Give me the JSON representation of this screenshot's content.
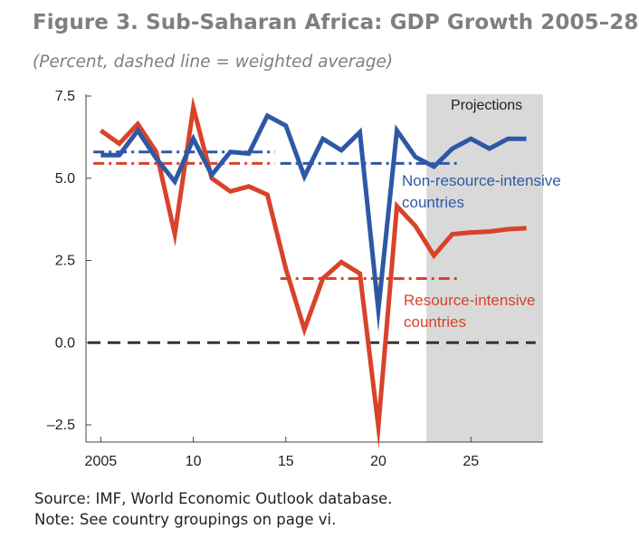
{
  "title": "Figure 3. Sub-Saharan Africa: GDP Growth 2005–28",
  "subtitle": "(Percent, dashed line = weighted average)",
  "source": "Source: IMF, World Economic Outlook database.",
  "note": "Note: See country groupings on page vi.",
  "chart_data": {
    "type": "line",
    "title": "Figure 3. Sub-Saharan Africa: GDP Growth 2005–28",
    "subtitle": "(Percent, dashed line = weighted average)",
    "xlabel": "",
    "ylabel": "",
    "xlim": [
      2004.2,
      2028.9
    ],
    "ylim": [
      -2.8,
      7.5
    ],
    "x_ticks": [
      {
        "value": 2005,
        "label": "2005"
      },
      {
        "value": 2010,
        "label": "10"
      },
      {
        "value": 2015,
        "label": "15"
      },
      {
        "value": 2020,
        "label": "20"
      },
      {
        "value": 2025,
        "label": "25"
      }
    ],
    "y_ticks": [
      {
        "value": 7.5,
        "label": "7.5"
      },
      {
        "value": 5.0,
        "label": "5.0"
      },
      {
        "value": 2.5,
        "label": "2.5"
      },
      {
        "value": 0.0,
        "label": "0.0"
      },
      {
        "value": -2.5,
        "label": "–2.5"
      }
    ],
    "grid": false,
    "projection_region": {
      "start": 2022.6,
      "end": 2028.9,
      "label": "Projections",
      "color": "#d9d9d9"
    },
    "x": [
      2005,
      2006,
      2007,
      2008,
      2009,
      2010,
      2011,
      2012,
      2013,
      2014,
      2015,
      2016,
      2017,
      2018,
      2019,
      2020,
      2021,
      2022,
      2023,
      2024,
      2025,
      2026,
      2027,
      2028
    ],
    "series": [
      {
        "name": "Non-resource-intensive\ncountries",
        "label_lines": [
          "Non-resource-intensive",
          "countries"
        ],
        "color": "#2e58a6",
        "values": [
          5.7,
          5.7,
          6.45,
          5.6,
          4.9,
          6.2,
          5.1,
          5.8,
          5.75,
          6.9,
          6.6,
          5.05,
          6.2,
          5.85,
          6.4,
          1.0,
          6.45,
          5.65,
          5.35,
          5.9,
          6.2,
          5.9,
          6.2,
          6.2
        ],
        "averages": [
          {
            "start": 2005,
            "end": 2014,
            "value": 5.8
          },
          {
            "start": 2015,
            "end": 2024,
            "value": 5.45
          }
        ]
      },
      {
        "name": "Resource-intensive\ncountries",
        "label_lines": [
          "Resource-intensive",
          "countries"
        ],
        "color": "#d8432a",
        "values": [
          6.45,
          6.05,
          6.65,
          5.8,
          3.3,
          7.15,
          5.0,
          4.6,
          4.75,
          4.5,
          2.25,
          0.4,
          1.95,
          2.45,
          2.1,
          -2.55,
          4.15,
          3.55,
          2.65,
          3.3,
          3.35,
          3.38,
          3.45,
          3.48
        ],
        "averages": [
          {
            "start": 2005,
            "end": 2014,
            "value": 5.45
          },
          {
            "start": 2015,
            "end": 2024,
            "value": 1.95
          }
        ]
      }
    ],
    "reference_line": {
      "value": 0.0,
      "color": "#333333",
      "style": "dashed"
    }
  }
}
